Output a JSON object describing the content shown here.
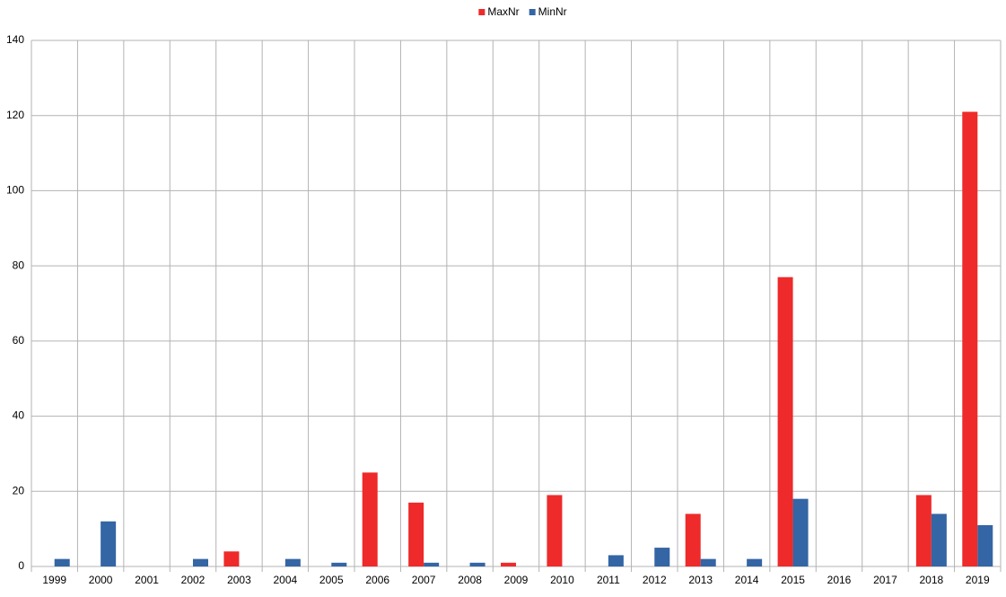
{
  "chart_data": {
    "type": "bar",
    "categories": [
      "1999",
      "2000",
      "2001",
      "2002",
      "2003",
      "2004",
      "2005",
      "2006",
      "2007",
      "2008",
      "2009",
      "2010",
      "2011",
      "2012",
      "2013",
      "2014",
      "2015",
      "2016",
      "2017",
      "2018",
      "2019"
    ],
    "series": [
      {
        "name": "MaxNr",
        "color": "#ee2a2a",
        "values": [
          0,
          0,
          0,
          0,
          4,
          0,
          0,
          25,
          17,
          0,
          1,
          19,
          0,
          0,
          14,
          0,
          77,
          0,
          0,
          19,
          121
        ]
      },
      {
        "name": "MinNr",
        "color": "#3465a4",
        "values": [
          2,
          12,
          0,
          2,
          0,
          2,
          1,
          0,
          1,
          1,
          0,
          0,
          3,
          5,
          2,
          2,
          18,
          0,
          0,
          14,
          11
        ]
      }
    ],
    "ylim": [
      0,
      140
    ],
    "yticks": [
      0,
      20,
      40,
      60,
      80,
      100,
      120,
      140
    ],
    "grid": true,
    "legend": "top"
  }
}
